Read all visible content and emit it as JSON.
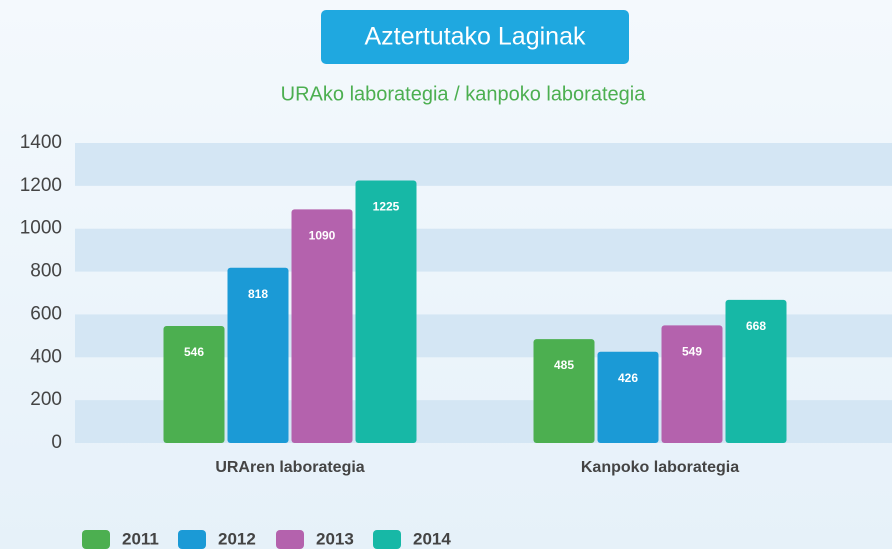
{
  "chart_data": {
    "type": "bar",
    "title": "Aztertutako Laginak",
    "subtitle": "URAko laborategia / kanpoko laborategia",
    "categories": [
      "URAren laborategia",
      "Kanpoko laborategia"
    ],
    "series": [
      {
        "name": "2011",
        "color": "#4caf50",
        "values": [
          546,
          485
        ]
      },
      {
        "name": "2012",
        "color": "#1b9ad6",
        "values": [
          818,
          426
        ]
      },
      {
        "name": "2013",
        "color": "#b462ad",
        "values": [
          1090,
          549
        ]
      },
      {
        "name": "2014",
        "color": "#17b8a6",
        "values": [
          1225,
          668
        ]
      }
    ],
    "ylim": [
      0,
      1400
    ],
    "yticks": [
      0,
      200,
      400,
      600,
      800,
      1000,
      1200,
      1400
    ],
    "grid": true,
    "legend": "bottom-left"
  }
}
